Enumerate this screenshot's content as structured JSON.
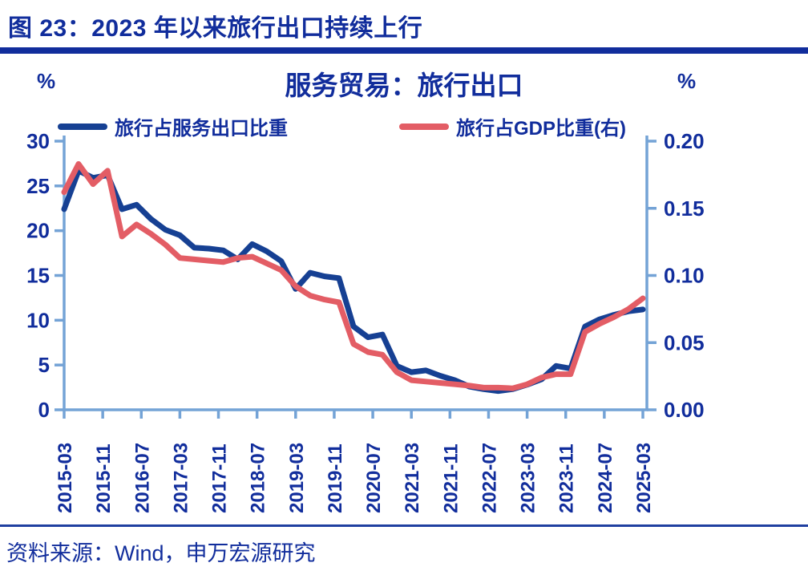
{
  "page": {
    "title": "图 23：2023 年以来旅行出口持续上行",
    "source": "资料来源：Wind，申万宏源研究"
  },
  "chart": {
    "title": "服务贸易：旅行出口",
    "left_axis_unit": "%",
    "right_axis_unit": "%",
    "legend": [
      {
        "label": "旅行占服务出口比重",
        "color": "#164093"
      },
      {
        "label": "旅行占GDP比重(右)",
        "color": "#E35D65"
      }
    ]
  },
  "colors": {
    "text_blue": "#112D9C",
    "series_blue": "#164093",
    "series_red": "#E35D65",
    "axis_blue": "#74A3D6"
  },
  "chart_data": {
    "type": "line",
    "title": "服务贸易：旅行出口",
    "grid": false,
    "legend_position": "top",
    "x": [
      "2015-03",
      "2015-06",
      "2015-09",
      "2015-12",
      "2016-03",
      "2016-06",
      "2016-09",
      "2016-12",
      "2017-03",
      "2017-06",
      "2017-09",
      "2017-12",
      "2018-03",
      "2018-06",
      "2018-09",
      "2018-12",
      "2019-03",
      "2019-06",
      "2019-09",
      "2019-12",
      "2020-03",
      "2020-06",
      "2020-09",
      "2020-12",
      "2021-03",
      "2021-06",
      "2021-09",
      "2021-12",
      "2022-03",
      "2022-06",
      "2022-09",
      "2022-12",
      "2023-03",
      "2023-06",
      "2023-09",
      "2023-12",
      "2024-03",
      "2024-06",
      "2024-09",
      "2024-12",
      "2025-03"
    ],
    "x_tick_labels": [
      "2015-03",
      "2015-11",
      "2016-07",
      "2017-03",
      "2017-11",
      "2018-07",
      "2019-03",
      "2019-11",
      "2020-07",
      "2021-03",
      "2021-11",
      "2022-07",
      "2023-03",
      "2023-11",
      "2024-07",
      "2025-03"
    ],
    "series": [
      {
        "name": "旅行占服务出口比重",
        "axis": "left",
        "color": "#164093",
        "values": [
          22.4,
          26.7,
          25.9,
          26.2,
          22.4,
          22.9,
          21.3,
          20.1,
          19.5,
          18.1,
          18.0,
          17.8,
          16.8,
          18.5,
          17.7,
          16.6,
          13.5,
          15.3,
          14.9,
          14.7,
          9.3,
          8.1,
          8.4,
          4.9,
          4.2,
          4.4,
          3.8,
          3.3,
          2.6,
          2.3,
          2.1,
          2.3,
          2.8,
          3.4,
          4.9,
          4.6,
          9.3,
          10.1,
          10.6,
          11.0,
          11.2
        ]
      },
      {
        "name": "旅行占GDP比重(右)",
        "axis": "right",
        "color": "#E35D65",
        "values": [
          0.162,
          0.183,
          0.168,
          0.178,
          0.129,
          0.138,
          0.131,
          0.123,
          0.113,
          0.112,
          0.111,
          0.11,
          0.113,
          0.114,
          0.109,
          0.104,
          0.092,
          0.085,
          0.082,
          0.08,
          0.049,
          0.043,
          0.041,
          0.028,
          0.022,
          0.021,
          0.02,
          0.019,
          0.018,
          0.0165,
          0.0165,
          0.016,
          0.019,
          0.024,
          0.0265,
          0.0265,
          0.058,
          0.064,
          0.069,
          0.075,
          0.083
        ]
      }
    ],
    "left_axis": {
      "min": 0,
      "max": 30,
      "ticks": [
        0,
        5,
        10,
        15,
        20,
        25,
        30
      ],
      "unit": "%"
    },
    "right_axis": {
      "min": 0,
      "max": 0.2,
      "ticks": [
        0,
        0.05,
        0.1,
        0.15,
        0.2
      ],
      "unit": "%"
    }
  }
}
